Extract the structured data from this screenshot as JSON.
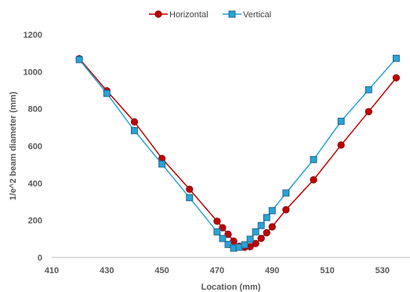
{
  "chart_data": {
    "type": "scatter",
    "xlabel": "Location (mm)",
    "ylabel": "1/e^2 beam diameter (mm)",
    "xlim": [
      410,
      540
    ],
    "ylim": [
      0,
      1200
    ],
    "x_ticks": [
      "410",
      "430",
      "450",
      "470",
      "490",
      "510",
      "530"
    ],
    "y_ticks": [
      "0",
      "200",
      "400",
      "600",
      "800",
      "1000",
      "1200"
    ],
    "grid": "off",
    "legend_position": "top-center",
    "series": [
      {
        "name": "Horizontal",
        "color": "#c00000",
        "marker": "circle",
        "x": [
          420,
          430,
          440,
          450,
          460,
          470,
          472,
          474,
          476,
          478,
          480,
          482,
          484,
          486,
          488,
          490,
          495,
          505,
          515,
          525,
          535
        ],
        "y": [
          1070,
          897,
          730,
          533,
          367,
          195,
          160,
          125,
          88,
          60,
          55,
          58,
          75,
          103,
          133,
          165,
          257,
          418,
          605,
          785,
          967
        ]
      },
      {
        "name": "Vertical",
        "color": "#29a3d6",
        "marker": "square",
        "x": [
          420,
          430,
          440,
          450,
          460,
          470,
          472,
          474,
          476,
          478,
          480,
          482,
          484,
          486,
          488,
          490,
          495,
          505,
          515,
          525,
          535
        ],
        "y": [
          1065,
          883,
          683,
          503,
          322,
          138,
          102,
          70,
          50,
          55,
          68,
          98,
          138,
          172,
          215,
          252,
          347,
          527,
          733,
          903,
          1072
        ]
      }
    ]
  }
}
